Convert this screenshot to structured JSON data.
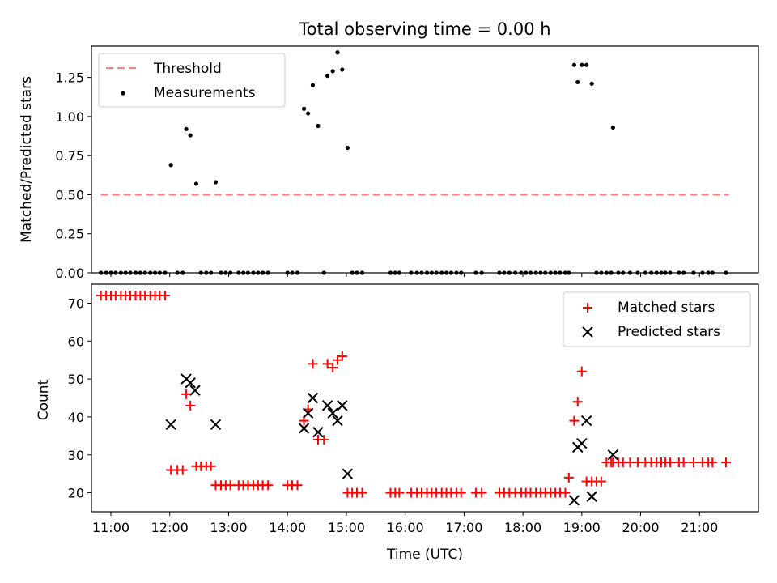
{
  "chart_data": [
    {
      "type": "scatter",
      "title": "Total observing time = 0.00 h",
      "xlabel": "",
      "ylabel": "Matched/Predicted stars",
      "xlim": [
        10.67,
        22.0
      ],
      "ylim": [
        0,
        1.45
      ],
      "yticks": [
        "0.00",
        "0.25",
        "0.50",
        "0.75",
        "1.00",
        "1.25"
      ],
      "legend_position": "upper left",
      "threshold": {
        "name": "Threshold",
        "value": 0.5,
        "x_range": [
          10.83,
          21.5
        ],
        "color": "#ff7f7f"
      },
      "series": [
        {
          "name": "Measurements",
          "color": "#000000",
          "x": [
            10.83,
            10.92,
            11.0,
            11.08,
            11.17,
            11.25,
            11.33,
            11.42,
            11.5,
            11.58,
            11.67,
            11.75,
            11.83,
            11.92,
            12.02,
            12.13,
            12.22,
            12.28,
            12.35,
            12.45,
            12.53,
            12.62,
            12.7,
            12.78,
            12.87,
            12.95,
            13.03,
            13.17,
            13.25,
            13.33,
            13.42,
            13.5,
            13.58,
            13.67,
            14.0,
            14.08,
            14.17,
            14.28,
            14.35,
            14.43,
            14.52,
            14.62,
            14.68,
            14.77,
            14.85,
            14.93,
            15.02,
            15.1,
            15.18,
            15.27,
            15.75,
            15.83,
            15.9,
            16.1,
            16.2,
            16.28,
            16.37,
            16.45,
            16.53,
            16.62,
            16.7,
            16.78,
            16.87,
            16.95,
            17.2,
            17.3,
            17.6,
            17.68,
            17.77,
            17.87,
            17.97,
            18.05,
            18.13,
            18.22,
            18.3,
            18.38,
            18.47,
            18.55,
            18.63,
            18.72,
            18.78,
            18.87,
            18.93,
            19.0,
            19.08,
            19.17,
            19.25,
            19.33,
            19.42,
            19.5,
            19.53,
            19.62,
            19.7,
            19.82,
            19.95,
            20.08,
            20.18,
            20.27,
            20.35,
            20.42,
            20.5,
            20.65,
            20.73,
            20.9,
            21.05,
            21.15,
            21.22,
            21.45
          ],
          "y": [
            0,
            0,
            0,
            0,
            0,
            0,
            0,
            0,
            0,
            0,
            0,
            0,
            0,
            0,
            0.69,
            0,
            0,
            0.92,
            0.88,
            0.57,
            0,
            0,
            0,
            0.58,
            0,
            0,
            0,
            0,
            0,
            0,
            0,
            0,
            0,
            0,
            0,
            0,
            0,
            1.05,
            1.02,
            1.2,
            0.94,
            0,
            1.26,
            1.29,
            1.41,
            1.3,
            0.8,
            0,
            0,
            0,
            0,
            0,
            0,
            0,
            0,
            0,
            0,
            0,
            0,
            0,
            0,
            0,
            0,
            0,
            0,
            0,
            0,
            0,
            0,
            0,
            0,
            0,
            0,
            0,
            0,
            0,
            0,
            0,
            0,
            0,
            0,
            1.33,
            1.22,
            1.33,
            1.33,
            1.21,
            0,
            0,
            0,
            0,
            0.93,
            0,
            0,
            0,
            0,
            0,
            0,
            0,
            0,
            0,
            0,
            0,
            0,
            0,
            0,
            0,
            0,
            0
          ]
        }
      ]
    },
    {
      "type": "scatter",
      "title": "",
      "xlabel": "Time (UTC)",
      "ylabel": "Count",
      "xlim": [
        10.67,
        22.0
      ],
      "ylim": [
        15,
        75
      ],
      "yticks": [
        "20",
        "30",
        "40",
        "50",
        "60",
        "70"
      ],
      "xticks": [
        "11:00",
        "12:00",
        "13:00",
        "14:00",
        "15:00",
        "16:00",
        "17:00",
        "18:00",
        "19:00",
        "20:00",
        "21:00"
      ],
      "legend_position": "upper right",
      "series": [
        {
          "name": "Matched stars",
          "marker": "plus",
          "color": "#ff0000",
          "x": [
            10.83,
            10.92,
            11.0,
            11.08,
            11.17,
            11.25,
            11.33,
            11.42,
            11.5,
            11.58,
            11.67,
            11.75,
            11.83,
            11.92,
            12.02,
            12.13,
            12.22,
            12.28,
            12.35,
            12.45,
            12.53,
            12.62,
            12.7,
            12.78,
            12.87,
            12.95,
            13.03,
            13.17,
            13.25,
            13.33,
            13.42,
            13.5,
            13.58,
            13.67,
            14.0,
            14.08,
            14.17,
            14.28,
            14.35,
            14.43,
            14.52,
            14.62,
            14.68,
            14.77,
            14.85,
            14.93,
            15.02,
            15.1,
            15.18,
            15.27,
            15.75,
            15.83,
            15.9,
            16.1,
            16.2,
            16.28,
            16.37,
            16.45,
            16.53,
            16.62,
            16.7,
            16.78,
            16.87,
            16.95,
            17.2,
            17.3,
            17.6,
            17.68,
            17.77,
            17.87,
            17.97,
            18.05,
            18.13,
            18.22,
            18.3,
            18.38,
            18.47,
            18.55,
            18.63,
            18.72,
            18.78,
            18.87,
            18.93,
            19.0,
            19.08,
            19.17,
            19.25,
            19.33,
            19.42,
            19.5,
            19.53,
            19.62,
            19.7,
            19.82,
            19.95,
            20.08,
            20.18,
            20.27,
            20.35,
            20.42,
            20.5,
            20.65,
            20.73,
            20.9,
            21.05,
            21.15,
            21.22,
            21.45
          ],
          "y": [
            72,
            72,
            72,
            72,
            72,
            72,
            72,
            72,
            72,
            72,
            72,
            72,
            72,
            72,
            26,
            26,
            26,
            46,
            43,
            27,
            27,
            27,
            27,
            22,
            22,
            22,
            22,
            22,
            22,
            22,
            22,
            22,
            22,
            22,
            22,
            22,
            22,
            39,
            42,
            54,
            34,
            34,
            54,
            53,
            55,
            56,
            20,
            20,
            20,
            20,
            20,
            20,
            20,
            20,
            20,
            20,
            20,
            20,
            20,
            20,
            20,
            20,
            20,
            20,
            20,
            20,
            20,
            20,
            20,
            20,
            20,
            20,
            20,
            20,
            20,
            20,
            20,
            20,
            20,
            20,
            24,
            39,
            44,
            52,
            23,
            23,
            23,
            23,
            28,
            28,
            28,
            28,
            28,
            28,
            28,
            28,
            28,
            28,
            28,
            28,
            28,
            28,
            28,
            28,
            28,
            28,
            28,
            28
          ]
        },
        {
          "name": "Predicted stars",
          "marker": "x",
          "color": "#000000",
          "x": [
            12.02,
            12.28,
            12.35,
            12.43,
            12.78,
            14.28,
            14.35,
            14.43,
            14.52,
            14.68,
            14.77,
            14.85,
            14.93,
            15.02,
            18.87,
            18.93,
            19.0,
            19.08,
            19.17,
            19.53
          ],
          "y": [
            38,
            50,
            49,
            47,
            38,
            37,
            41,
            45,
            36,
            43,
            41,
            39,
            43,
            25,
            18,
            32,
            33,
            39,
            19,
            30
          ]
        }
      ]
    }
  ]
}
